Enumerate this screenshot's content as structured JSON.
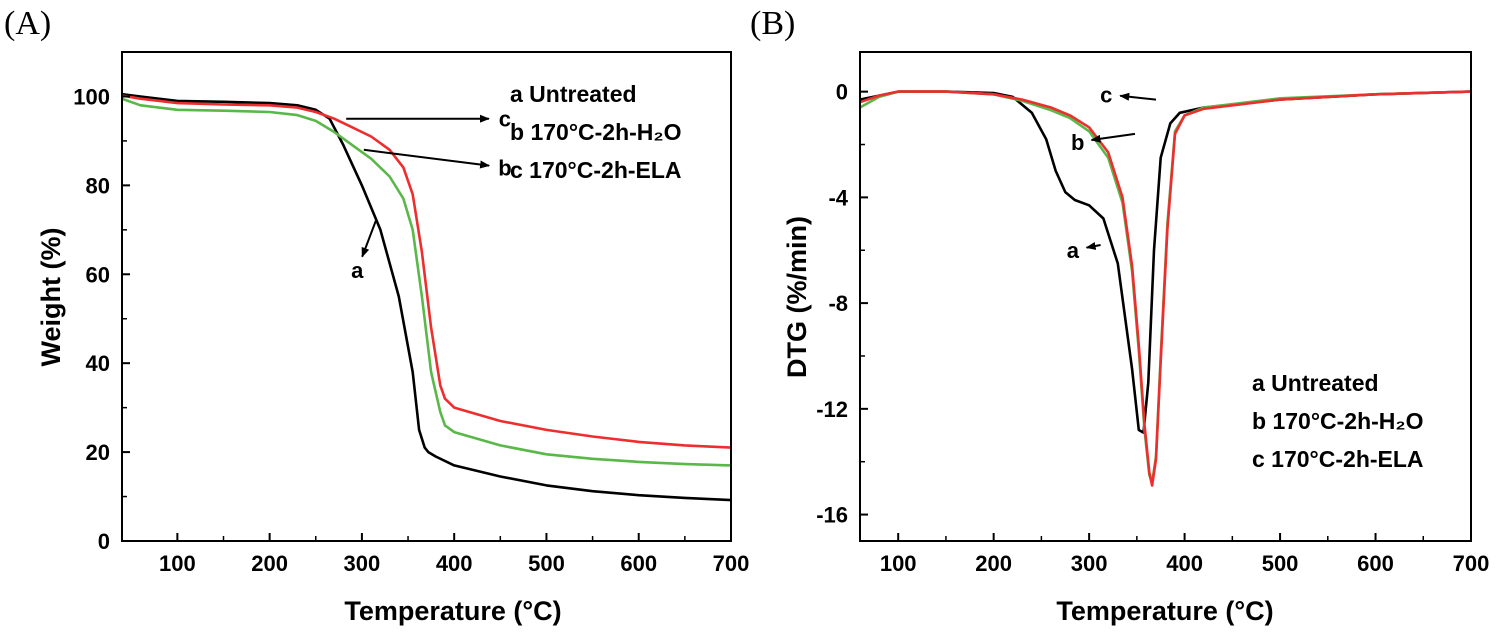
{
  "chart_data": [
    {
      "panel_label": "(A)",
      "type": "line",
      "title": "",
      "xlabel": "Temperature (°C)",
      "ylabel": "Weight (%)",
      "xlim": [
        40,
        700
      ],
      "ylim": [
        0,
        110
      ],
      "xticks": [
        100,
        200,
        300,
        400,
        500,
        600,
        700
      ],
      "yticks": [
        0,
        20,
        40,
        60,
        80,
        100
      ],
      "legend": [
        "a  Untreated",
        "b 170°C-2h-H₂O",
        "c 170°C-2h-ELA"
      ],
      "legend_position": "top-right",
      "series": [
        {
          "name": "a",
          "color": "#000000",
          "x": [
            40,
            60,
            100,
            150,
            200,
            230,
            250,
            265,
            280,
            300,
            320,
            340,
            355,
            362,
            368,
            372,
            380,
            400,
            450,
            500,
            550,
            600,
            650,
            700
          ],
          "y": [
            100.5,
            100,
            99,
            98.8,
            98.5,
            98,
            97,
            95,
            89,
            80,
            70,
            55,
            38,
            25,
            21,
            20,
            19,
            17,
            14.5,
            12.5,
            11.2,
            10.3,
            9.7,
            9.2
          ]
        },
        {
          "name": "b",
          "color": "#5ab848",
          "x": [
            40,
            60,
            100,
            150,
            200,
            230,
            250,
            270,
            290,
            310,
            330,
            345,
            355,
            365,
            375,
            385,
            390,
            400,
            450,
            500,
            550,
            600,
            650,
            700
          ],
          "y": [
            99.5,
            98,
            97,
            96.8,
            96.5,
            95.8,
            94.5,
            92,
            89,
            86,
            82,
            77,
            70,
            55,
            38,
            29,
            26,
            24.5,
            21.5,
            19.5,
            18.5,
            17.8,
            17.3,
            17
          ]
        },
        {
          "name": "c",
          "color": "#ee2e2e",
          "x": [
            40,
            60,
            100,
            150,
            200,
            230,
            250,
            270,
            290,
            310,
            330,
            345,
            355,
            365,
            375,
            385,
            390,
            400,
            450,
            500,
            550,
            600,
            650,
            700
          ],
          "y": [
            100.2,
            99.5,
            98.5,
            98.2,
            98,
            97.5,
            96.5,
            95,
            93,
            91,
            88,
            84,
            78,
            65,
            48,
            35,
            32,
            30,
            27,
            25,
            23.5,
            22.3,
            21.5,
            21
          ]
        }
      ],
      "annotations": [
        {
          "text": "a",
          "x": 295,
          "y": 61,
          "arrow_to": [
            315,
            72
          ]
        },
        {
          "text": "b",
          "x": 455,
          "y": 84,
          "arrow_from": [
            302,
            88
          ]
        },
        {
          "text": "c",
          "x": 455,
          "y": 95,
          "arrow_from": [
            283,
            95
          ]
        }
      ]
    },
    {
      "panel_label": "(B)",
      "type": "line",
      "title": "",
      "xlabel": "Temperature (°C)",
      "ylabel": "DTG (%/min)",
      "xlim": [
        60,
        700
      ],
      "ylim": [
        -17,
        1.5
      ],
      "xticks": [
        100,
        200,
        300,
        400,
        500,
        600,
        700
      ],
      "yticks": [
        0,
        -4,
        -8,
        -12,
        -16
      ],
      "legend": [
        "a  Untreated",
        "b 170°C-2h-H₂O",
        "c 170°C-2h-ELA"
      ],
      "legend_position": "bottom-right",
      "series": [
        {
          "name": "a",
          "color": "#000000",
          "x": [
            60,
            80,
            100,
            150,
            200,
            220,
            240,
            255,
            265,
            275,
            285,
            300,
            315,
            330,
            345,
            352,
            357,
            362,
            368,
            375,
            385,
            395,
            420,
            500,
            600,
            700
          ],
          "y": [
            -0.3,
            -0.15,
            0,
            0,
            -0.05,
            -0.2,
            -0.8,
            -1.8,
            -3,
            -3.8,
            -4.1,
            -4.3,
            -4.8,
            -6.5,
            -10.5,
            -12.8,
            -12.9,
            -11,
            -6,
            -2.5,
            -1.2,
            -0.8,
            -0.6,
            -0.3,
            -0.1,
            0
          ]
        },
        {
          "name": "b",
          "color": "#5ab848",
          "x": [
            60,
            80,
            100,
            150,
            200,
            230,
            260,
            280,
            300,
            320,
            335,
            345,
            352,
            358,
            363,
            366,
            370,
            375,
            382,
            390,
            400,
            420,
            500,
            600,
            700
          ],
          "y": [
            -0.6,
            -0.2,
            0,
            0,
            -0.1,
            -0.35,
            -0.7,
            -1,
            -1.5,
            -2.5,
            -4.2,
            -6.8,
            -9.8,
            -12.8,
            -14.5,
            -14.8,
            -13.8,
            -10,
            -5,
            -1.5,
            -0.9,
            -0.6,
            -0.25,
            -0.1,
            0
          ]
        },
        {
          "name": "c",
          "color": "#ee2e2e",
          "x": [
            60,
            80,
            100,
            150,
            200,
            230,
            260,
            280,
            300,
            320,
            335,
            345,
            352,
            358,
            363,
            366,
            370,
            375,
            382,
            390,
            400,
            420,
            500,
            600,
            700
          ],
          "y": [
            -0.4,
            -0.15,
            0,
            0,
            -0.1,
            -0.3,
            -0.6,
            -0.9,
            -1.35,
            -2.3,
            -4,
            -6.6,
            -9.6,
            -12.6,
            -14.4,
            -14.9,
            -13.9,
            -10.2,
            -5.2,
            -1.6,
            -0.9,
            -0.65,
            -0.3,
            -0.1,
            0
          ]
        }
      ],
      "annotations": [
        {
          "text": "a",
          "x": 283,
          "y": -6,
          "arrow_to": [
            312,
            -5.8
          ]
        },
        {
          "text": "b",
          "x": 288,
          "y": -1.9,
          "arrow_to": [
            348,
            -1.6
          ]
        },
        {
          "text": "c",
          "x": 318,
          "y": -0.1,
          "arrow_to": [
            370,
            -0.3
          ]
        }
      ]
    }
  ]
}
